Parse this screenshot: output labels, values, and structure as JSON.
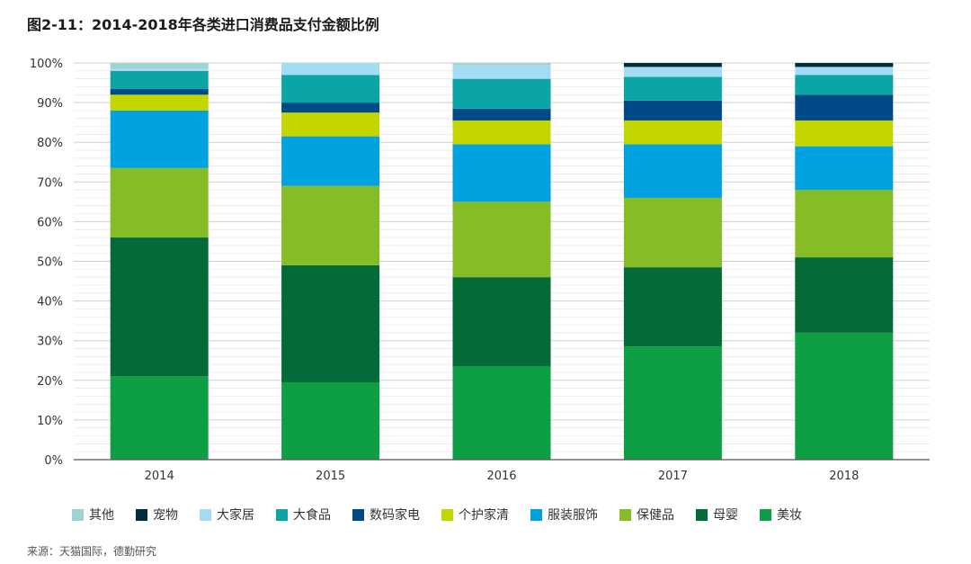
{
  "title": "图2-11：2014-2018年各类进口消费品支付金额比例",
  "source": "来源：天猫国际，德勤研究",
  "chart_data": {
    "type": "bar",
    "stacked": true,
    "title": "图2-11：2014-2018年各类进口消费品支付金额比例",
    "xlabel": "",
    "ylabel": "",
    "ylim": [
      0,
      100
    ],
    "yticks": [
      "0%",
      "10%",
      "20%",
      "30%",
      "40%",
      "50%",
      "60%",
      "70%",
      "80%",
      "90%",
      "100%"
    ],
    "grid": true,
    "legend_position": "bottom",
    "categories": [
      "2014",
      "2015",
      "2016",
      "2017",
      "2018"
    ],
    "series": [
      {
        "name": "美妆",
        "color": "#0e9f44",
        "values": [
          21,
          19.5,
          23.5,
          28.5,
          32
        ]
      },
      {
        "name": "母婴",
        "color": "#046a38",
        "values": [
          35,
          29.5,
          22.5,
          20,
          19
        ]
      },
      {
        "name": "保健品",
        "color": "#86bc25",
        "values": [
          17.5,
          20,
          19,
          17.5,
          17
        ]
      },
      {
        "name": "服装服饰",
        "color": "#00a3e0",
        "values": [
          14.5,
          12.5,
          14.5,
          13.5,
          11
        ]
      },
      {
        "name": "个护家清",
        "color": "#c4d600",
        "values": [
          4,
          6,
          6,
          6,
          6.5
        ]
      },
      {
        "name": "数码家电",
        "color": "#004b87",
        "values": [
          1.5,
          2.5,
          3,
          5,
          6.5
        ]
      },
      {
        "name": "大食品",
        "color": "#0ba5a6",
        "values": [
          4.5,
          7,
          7.5,
          6,
          5
        ]
      },
      {
        "name": "大家居",
        "color": "#a4dcf4",
        "values": [
          0.5,
          3,
          3.5,
          2.5,
          2
        ]
      },
      {
        "name": "宠物",
        "color": "#012d3d",
        "values": [
          0,
          0,
          0,
          1,
          1
        ]
      },
      {
        "name": "其他",
        "color": "#9fd3cf",
        "values": [
          1.5,
          0,
          0.5,
          0,
          0
        ]
      }
    ]
  },
  "legend_order": [
    "其他",
    "宠物",
    "大家居",
    "大食品",
    "数码家电",
    "个护家清",
    "服装服饰",
    "保健品",
    "母婴",
    "美妆"
  ]
}
